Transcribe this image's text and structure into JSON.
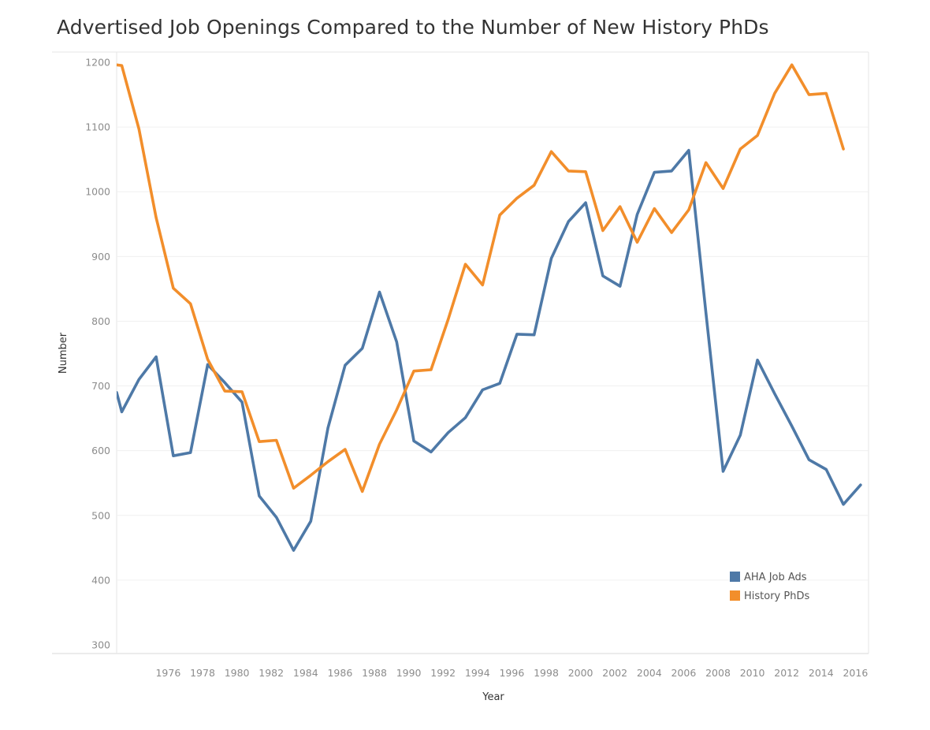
{
  "chart_data": {
    "type": "line",
    "title": "Advertised Job Openings Compared to the Number of New History PhDs",
    "xlabel": "Year",
    "ylabel": "Number",
    "xlim": [
      1973,
      2017
    ],
    "ylim": [
      300,
      1200
    ],
    "x_ticks": [
      1976,
      1978,
      1980,
      1982,
      1984,
      1986,
      1988,
      1990,
      1992,
      1994,
      1996,
      1998,
      2000,
      2002,
      2004,
      2006,
      2008,
      2010,
      2012,
      2014,
      2016
    ],
    "y_ticks": [
      300,
      400,
      500,
      600,
      700,
      800,
      900,
      1000,
      1100,
      1200
    ],
    "grid": "horizontal",
    "legend_position": "bottom-right",
    "series": [
      {
        "name": "AHA Job Ads",
        "color": "#4e79a7",
        "points": [
          [
            1973,
            690
          ],
          [
            1973.3,
            660
          ],
          [
            1974.3,
            710
          ],
          [
            1975.3,
            745
          ],
          [
            1976.3,
            592
          ],
          [
            1977.3,
            597
          ],
          [
            1978.3,
            733
          ],
          [
            1979.3,
            705
          ],
          [
            1980.3,
            675
          ],
          [
            1981.3,
            530
          ],
          [
            1982.3,
            497
          ],
          [
            1983.3,
            446
          ],
          [
            1984.3,
            491
          ],
          [
            1985.3,
            635
          ],
          [
            1986.3,
            732
          ],
          [
            1987.3,
            758
          ],
          [
            1988.3,
            845
          ],
          [
            1989.3,
            768
          ],
          [
            1990.3,
            615
          ],
          [
            1991.3,
            598
          ],
          [
            1992.3,
            628
          ],
          [
            1993.3,
            651
          ],
          [
            1994.3,
            694
          ],
          [
            1995.3,
            704
          ],
          [
            1996.3,
            780
          ],
          [
            1997.3,
            779
          ],
          [
            1998.3,
            897
          ],
          [
            1999.3,
            954
          ],
          [
            2000.3,
            983
          ],
          [
            2001.3,
            870
          ],
          [
            2002.3,
            854
          ],
          [
            2003.3,
            965
          ],
          [
            2004.3,
            1030
          ],
          [
            2005.3,
            1032
          ],
          [
            2006.3,
            1064
          ],
          [
            2007.3,
            813
          ],
          [
            2008.3,
            568
          ],
          [
            2009.3,
            624
          ],
          [
            2010.3,
            740
          ],
          [
            2011.3,
            688
          ],
          [
            2012.3,
            638
          ],
          [
            2013.3,
            586
          ],
          [
            2014.3,
            571
          ],
          [
            2015.3,
            517
          ],
          [
            2016.3,
            547
          ]
        ]
      },
      {
        "name": "History PhDs",
        "color": "#f28e2b",
        "points": [
          [
            1973,
            1196
          ],
          [
            1973.3,
            1195
          ],
          [
            1974.3,
            1097
          ],
          [
            1975.3,
            960
          ],
          [
            1976.3,
            851
          ],
          [
            1977.3,
            827
          ],
          [
            1978.3,
            741
          ],
          [
            1979.3,
            692
          ],
          [
            1980.3,
            691
          ],
          [
            1981.3,
            614
          ],
          [
            1982.3,
            616
          ],
          [
            1983.3,
            542
          ],
          [
            1984.3,
            562
          ],
          [
            1985.3,
            583
          ],
          [
            1986.3,
            602
          ],
          [
            1987.3,
            537
          ],
          [
            1988.3,
            610
          ],
          [
            1989.3,
            663
          ],
          [
            1990.3,
            723
          ],
          [
            1991.3,
            725
          ],
          [
            1992.3,
            803
          ],
          [
            1993.3,
            888
          ],
          [
            1994.3,
            856
          ],
          [
            1995.3,
            964
          ],
          [
            1996.3,
            990
          ],
          [
            1997.3,
            1010
          ],
          [
            1998.3,
            1062
          ],
          [
            1999.3,
            1032
          ],
          [
            2000.3,
            1031
          ],
          [
            2001.3,
            940
          ],
          [
            2002.3,
            977
          ],
          [
            2003.3,
            922
          ],
          [
            2004.3,
            974
          ],
          [
            2005.3,
            937
          ],
          [
            2006.3,
            972
          ],
          [
            2007.3,
            1045
          ],
          [
            2008.3,
            1005
          ],
          [
            2009.3,
            1066
          ],
          [
            2010.3,
            1087
          ],
          [
            2011.3,
            1152
          ],
          [
            2012.3,
            1196
          ],
          [
            2013.3,
            1150
          ],
          [
            2014.3,
            1152
          ],
          [
            2015.3,
            1066
          ]
        ]
      }
    ]
  }
}
